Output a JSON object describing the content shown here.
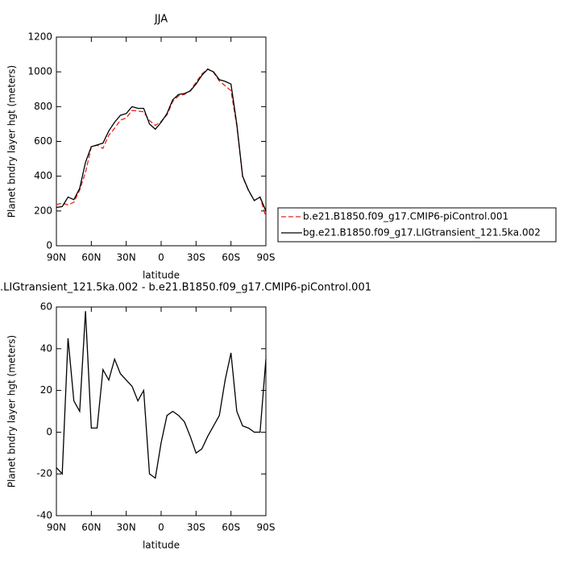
{
  "chart_data": [
    {
      "type": "line",
      "title": "JJA",
      "xlabel": "latitude",
      "ylabel": "Planet bndry layer hgt (meters)",
      "x": [
        90,
        85,
        80,
        75,
        70,
        65,
        60,
        55,
        50,
        45,
        40,
        35,
        30,
        25,
        20,
        15,
        10,
        5,
        0,
        -5,
        -10,
        -15,
        -20,
        -25,
        -30,
        -35,
        -40,
        -45,
        -50,
        -55,
        -60,
        -65,
        -70,
        -75,
        -80,
        -85,
        -90
      ],
      "series": [
        {
          "name": "b.e21.B1850.f09_g17.CMIP6-piControl.001",
          "color": "#e8231f",
          "linestyle": "dashed",
          "values": [
            237,
            245,
            235,
            250,
            320,
            422,
            568,
            578,
            560,
            635,
            675,
            722,
            735,
            778,
            775,
            770,
            720,
            692,
            715,
            752,
            830,
            862,
            870,
            892,
            940,
            988,
            1017,
            997,
            947,
            920,
            892,
            690,
            397,
            318,
            260,
            280,
            165
          ]
        },
        {
          "name": "bg.e21.B1850.f09_g17.LIGtransient_121.5ka.002",
          "color": "#000000",
          "linestyle": "solid",
          "values": [
            220,
            225,
            280,
            265,
            330,
            480,
            570,
            580,
            590,
            660,
            710,
            750,
            760,
            800,
            790,
            790,
            700,
            670,
            710,
            760,
            840,
            870,
            875,
            890,
            930,
            980,
            1015,
            1000,
            955,
            945,
            930,
            700,
            400,
            320,
            260,
            280,
            200
          ]
        }
      ],
      "xlim": [
        90,
        -90
      ],
      "xticks": [
        {
          "value": 90,
          "label": "90N"
        },
        {
          "value": 60,
          "label": "60N"
        },
        {
          "value": 30,
          "label": "30N"
        },
        0,
        {
          "value": -30,
          "label": "30S"
        },
        {
          "value": -60,
          "label": "60S"
        },
        {
          "value": -90,
          "label": "90S"
        }
      ],
      "ylim": [
        0,
        1200
      ],
      "yticks": [
        0,
        200,
        400,
        600,
        800,
        1000,
        1200
      ],
      "legend": "right"
    },
    {
      "type": "line",
      "title": ".LIGtransient_121.5ka.002 - b.e21.B1850.f09_g17.CMIP6-piControl.001",
      "xlabel": "latitude",
      "ylabel": "Planet bndry layer hgt (meters)",
      "x": [
        90,
        85,
        80,
        75,
        70,
        65,
        60,
        55,
        50,
        45,
        40,
        35,
        30,
        25,
        20,
        15,
        10,
        5,
        0,
        -5,
        -10,
        -15,
        -20,
        -25,
        -30,
        -35,
        -40,
        -45,
        -50,
        -55,
        -60,
        -65,
        -70,
        -75,
        -80,
        -85,
        -90
      ],
      "series": [
        {
          "color": "#000000",
          "linestyle": "solid",
          "values": [
            -17,
            -20,
            45,
            15,
            10,
            58,
            2,
            2,
            30,
            25,
            35,
            28,
            25,
            22,
            15,
            20,
            -20,
            -22,
            -5,
            8,
            10,
            8,
            5,
            -2,
            -10,
            -8,
            -2,
            3,
            8,
            25,
            38,
            10,
            3,
            2,
            0,
            0,
            35
          ]
        }
      ],
      "xlim": [
        90,
        -90
      ],
      "xticks": [
        {
          "value": 90,
          "label": "90N"
        },
        {
          "value": 60,
          "label": "60N"
        },
        {
          "value": 30,
          "label": "30N"
        },
        0,
        {
          "value": -30,
          "label": "30S"
        },
        {
          "value": -60,
          "label": "60S"
        },
        {
          "value": -90,
          "label": "90S"
        }
      ],
      "ylim": [
        -40,
        60
      ],
      "yticks": [
        -40,
        -20,
        0,
        20,
        40,
        60
      ]
    }
  ]
}
